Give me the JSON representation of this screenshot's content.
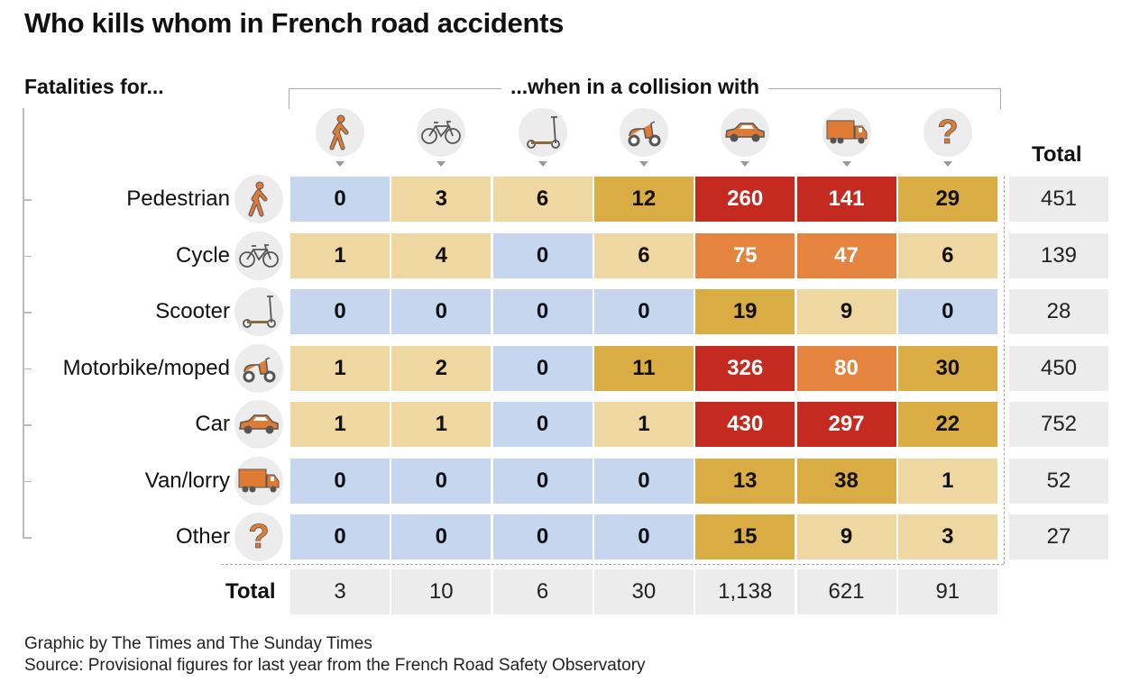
{
  "title": "Who kills whom in French road accidents",
  "row_header": "Fatalities for...",
  "col_header": "...when in a collision with",
  "total_label": "Total",
  "footer": {
    "credit": "Graphic by The Times and The Sunday Times",
    "source": "Source: Provisional figures for last year from the French Road Safety Observatory"
  },
  "colors": {
    "zero": "#c6d6ef",
    "low": "#eed7a0",
    "mid": "#d9ac44",
    "high": "#e4843e",
    "top": "#c52a21"
  },
  "chart_data": {
    "type": "heatmap",
    "title": "Who kills whom in French road accidents",
    "rows": [
      "Pedestrian",
      "Cycle",
      "Scooter",
      "Motorbike/moped",
      "Car",
      "Van/lorry",
      "Other"
    ],
    "columns": [
      "pedestrian",
      "cycle",
      "scooter",
      "motorbike",
      "car",
      "van/lorry",
      "other"
    ],
    "values": [
      [
        0,
        3,
        6,
        12,
        260,
        141,
        29
      ],
      [
        1,
        4,
        0,
        6,
        75,
        47,
        6
      ],
      [
        0,
        0,
        0,
        0,
        19,
        9,
        0
      ],
      [
        1,
        2,
        0,
        11,
        326,
        80,
        30
      ],
      [
        1,
        1,
        0,
        1,
        430,
        297,
        22
      ],
      [
        0,
        0,
        0,
        0,
        13,
        38,
        1
      ],
      [
        0,
        0,
        0,
        0,
        15,
        9,
        3
      ]
    ],
    "row_totals": [
      "451",
      "139",
      "28",
      "450",
      "752",
      "52",
      "27"
    ],
    "col_totals": [
      "3",
      "10",
      "6",
      "30",
      "1,138",
      "621",
      "91"
    ],
    "bins": [
      0,
      1,
      10,
      40,
      100
    ]
  },
  "icons": [
    "pedestrian-icon",
    "bicycle-icon",
    "scooter-icon",
    "motorbike-icon",
    "car-icon",
    "lorry-icon",
    "question-icon"
  ]
}
